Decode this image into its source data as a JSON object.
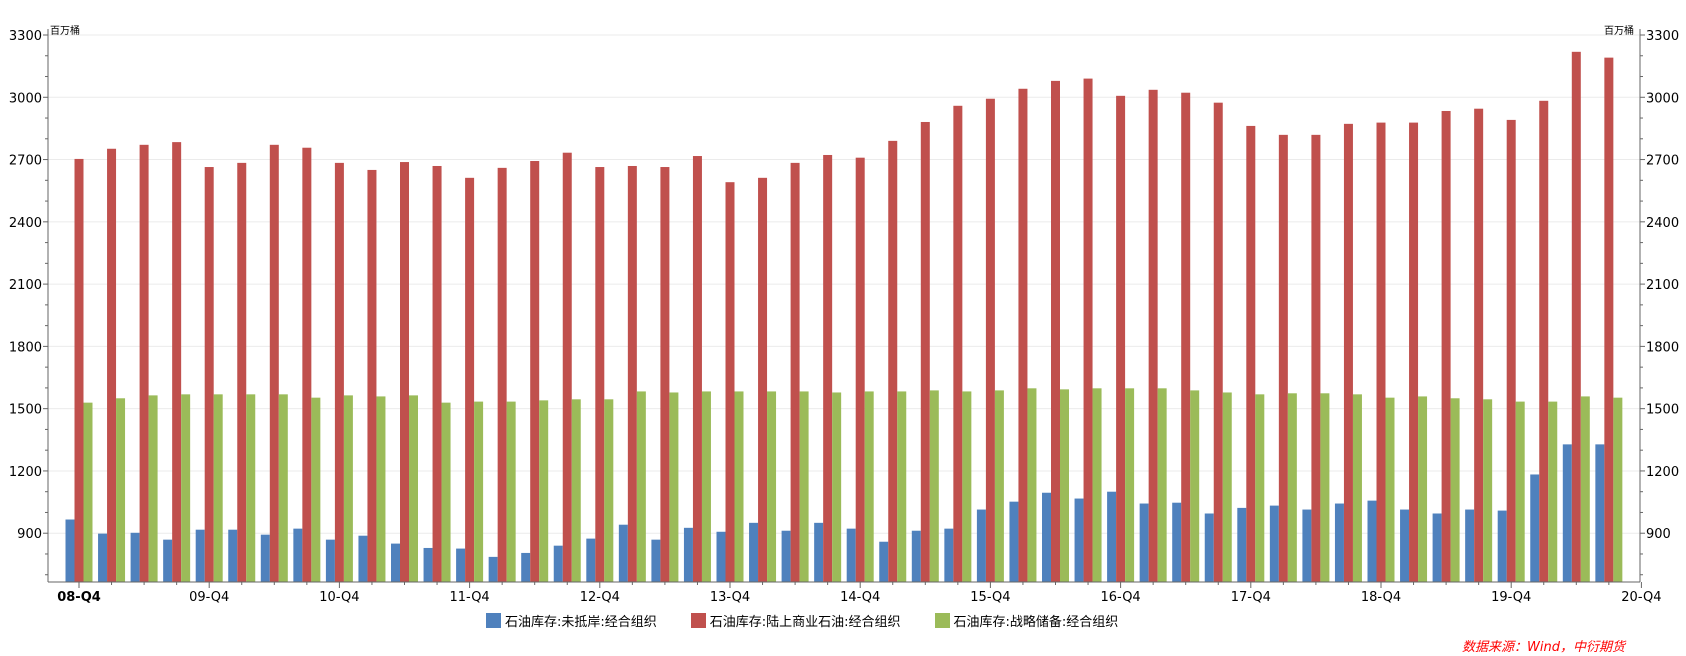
{
  "chart_data": {
    "type": "bar",
    "title": "",
    "unit_left": "百万桶",
    "unit_right": "百万桶",
    "ylim": [
      665,
      3300
    ],
    "yticks": [
      900,
      1200,
      1500,
      1800,
      2100,
      2400,
      2700,
      3000,
      3300
    ],
    "xtick_labels": [
      "08-Q4",
      "09-Q4",
      "10-Q4",
      "11-Q4",
      "12-Q4",
      "13-Q4",
      "14-Q4",
      "15-Q4",
      "16-Q4",
      "17-Q4",
      "18-Q4",
      "19-Q4",
      "20-Q4"
    ],
    "categories": [
      "08-Q4",
      "09-Q1",
      "09-Q2",
      "09-Q3",
      "09-Q4",
      "10-Q1",
      "10-Q2",
      "10-Q3",
      "10-Q4",
      "11-Q1",
      "11-Q2",
      "11-Q3",
      "11-Q4",
      "12-Q1",
      "12-Q2",
      "12-Q3",
      "12-Q4",
      "13-Q1",
      "13-Q2",
      "13-Q3",
      "13-Q4",
      "14-Q1",
      "14-Q2",
      "14-Q3",
      "14-Q4",
      "15-Q1",
      "15-Q2",
      "15-Q3",
      "15-Q4",
      "16-Q1",
      "16-Q2",
      "16-Q3",
      "16-Q4",
      "17-Q1",
      "17-Q2",
      "17-Q3",
      "17-Q4",
      "18-Q1",
      "18-Q2",
      "18-Q3",
      "18-Q4",
      "19-Q1",
      "19-Q2",
      "19-Q3",
      "19-Q4",
      "20-Q1",
      "20-Q2",
      "20-Q3"
    ],
    "series": [
      {
        "name": "石油库存:未抵岸:经合组织",
        "color": "#4F81BD",
        "values": [
          966,
          898,
          902,
          869,
          917,
          917,
          893,
          922,
          869,
          888,
          850,
          829,
          826,
          786,
          805,
          840,
          874,
          941,
          869,
          926,
          907,
          950,
          912,
          950,
          922,
          859,
          912,
          922,
          1014,
          1052,
          1095,
          1067,
          1100,
          1043,
          1047,
          995,
          1022,
          1033,
          1014,
          1043,
          1057,
          1014,
          995,
          1014,
          1009,
          1183,
          1328,
          1328
        ]
      },
      {
        "name": "石油库存:陆上商业石油:经合组织",
        "color": "#C0504D",
        "values": [
          2703,
          2752,
          2771,
          2784,
          2664,
          2684,
          2771,
          2757,
          2684,
          2650,
          2688,
          2669,
          2612,
          2660,
          2693,
          2733,
          2664,
          2669,
          2664,
          2717,
          2591,
          2612,
          2684,
          2722,
          2709,
          2790,
          2881,
          2959,
          2993,
          3041,
          3079,
          3090,
          3007,
          3036,
          3022,
          2974,
          2862,
          2819,
          2819,
          2872,
          2878,
          2878,
          2934,
          2945,
          2891,
          2983,
          3219,
          3191
        ]
      },
      {
        "name": "石油库存:战略储备:经合组织",
        "color": "#9BBB59",
        "values": [
          1529,
          1550,
          1564,
          1569,
          1569,
          1569,
          1569,
          1553,
          1564,
          1559,
          1564,
          1529,
          1534,
          1534,
          1540,
          1545,
          1545,
          1583,
          1578,
          1583,
          1583,
          1583,
          1583,
          1578,
          1583,
          1583,
          1588,
          1583,
          1588,
          1598,
          1593,
          1598,
          1598,
          1598,
          1588,
          1578,
          1569,
          1574,
          1574,
          1569,
          1553,
          1559,
          1550,
          1545,
          1534,
          1534,
          1559,
          1553
        ]
      }
    ],
    "grid": true,
    "legend_position": "bottom",
    "source": "数据来源：Wind，中衍期货"
  }
}
